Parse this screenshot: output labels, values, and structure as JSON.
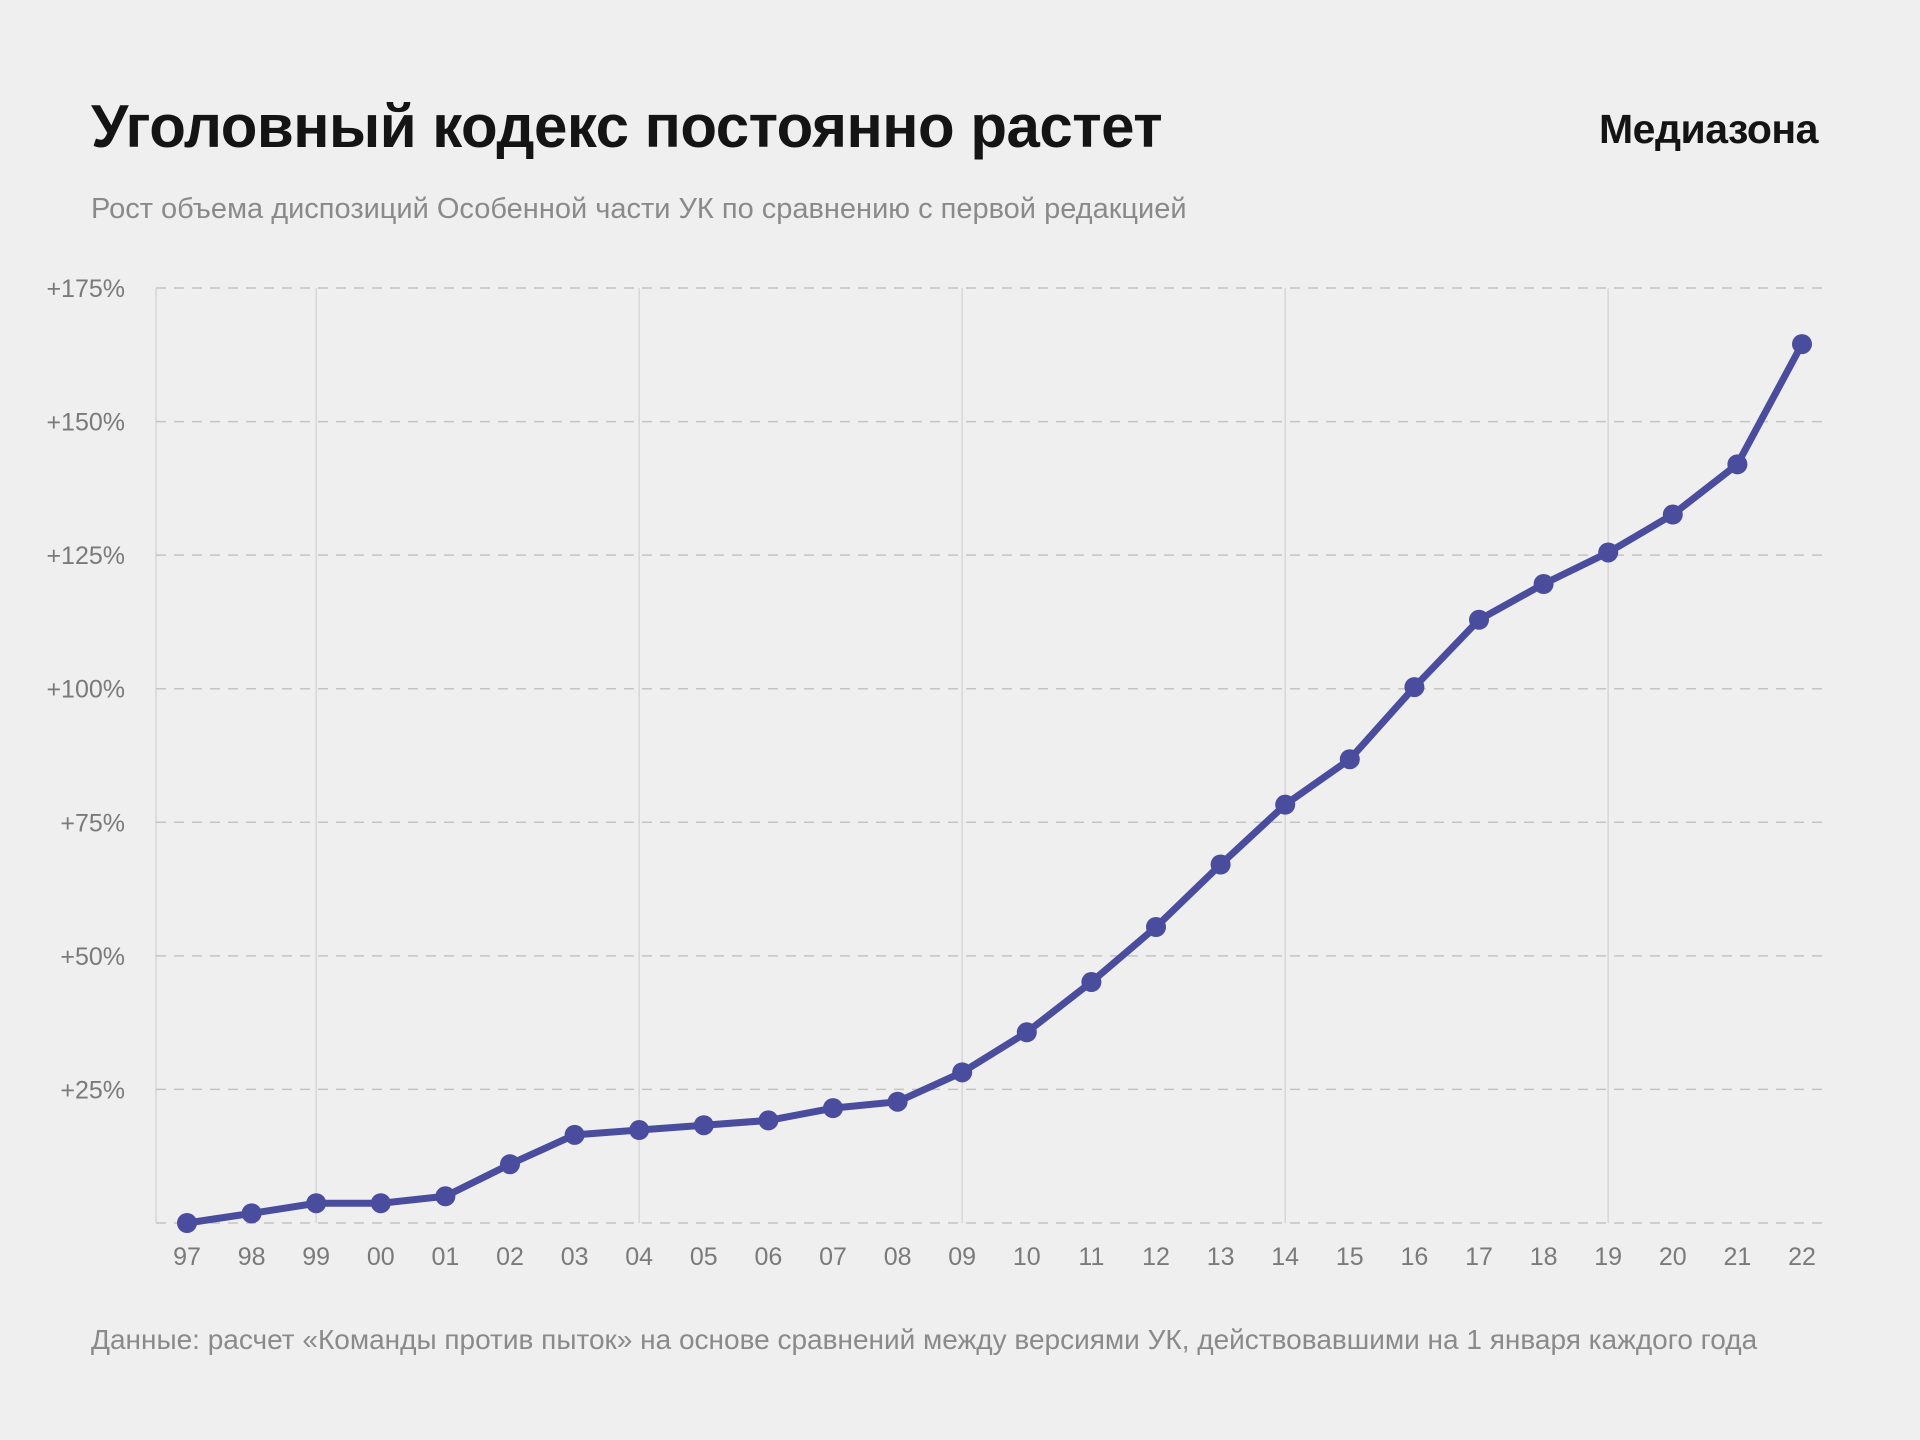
{
  "header": {
    "title": "Уголовный кодекс постоянно растет",
    "logo": "Медиазона",
    "subtitle": "Рост объема диспозиций Особенной части УК по сравнению с первой редакцией"
  },
  "footer": {
    "source": "Данные: расчет «Команды против пыток» на основе сравнений между версиями УК, действовавшими на 1 января каждого года"
  },
  "colors": {
    "line": "#4a4c9e",
    "grid": "#c8c8c8",
    "background": "#efefef"
  },
  "chart_data": {
    "type": "line",
    "title": "Уголовный кодекс постоянно растет",
    "xlabel": "",
    "ylabel": "",
    "categories": [
      "97",
      "98",
      "99",
      "00",
      "01",
      "02",
      "03",
      "04",
      "05",
      "06",
      "07",
      "08",
      "09",
      "10",
      "11",
      "12",
      "13",
      "14",
      "15",
      "16",
      "17",
      "18",
      "19",
      "20",
      "21",
      "22"
    ],
    "series": [
      {
        "name": "Рост объема диспозиций",
        "values": [
          0,
          1.8,
          3.7,
          3.7,
          5.0,
          11.0,
          16.5,
          17.4,
          18.3,
          19.2,
          21.5,
          22.7,
          28.2,
          35.7,
          45.1,
          55.4,
          67.1,
          78.3,
          86.8,
          100.3,
          112.9,
          119.6,
          125.5,
          132.6,
          142.0,
          164.5
        ]
      }
    ],
    "ylim": [
      0,
      175
    ],
    "yticks": [
      25,
      50,
      75,
      100,
      125,
      150,
      175
    ],
    "ytick_labels": [
      "+25%",
      "+50%",
      "+75%",
      "+100%",
      "+125%",
      "+150%",
      "+175%"
    ],
    "vertical_gridlines_at": [
      "99",
      "04",
      "09",
      "14",
      "19"
    ],
    "grid": true,
    "legend": "none"
  }
}
